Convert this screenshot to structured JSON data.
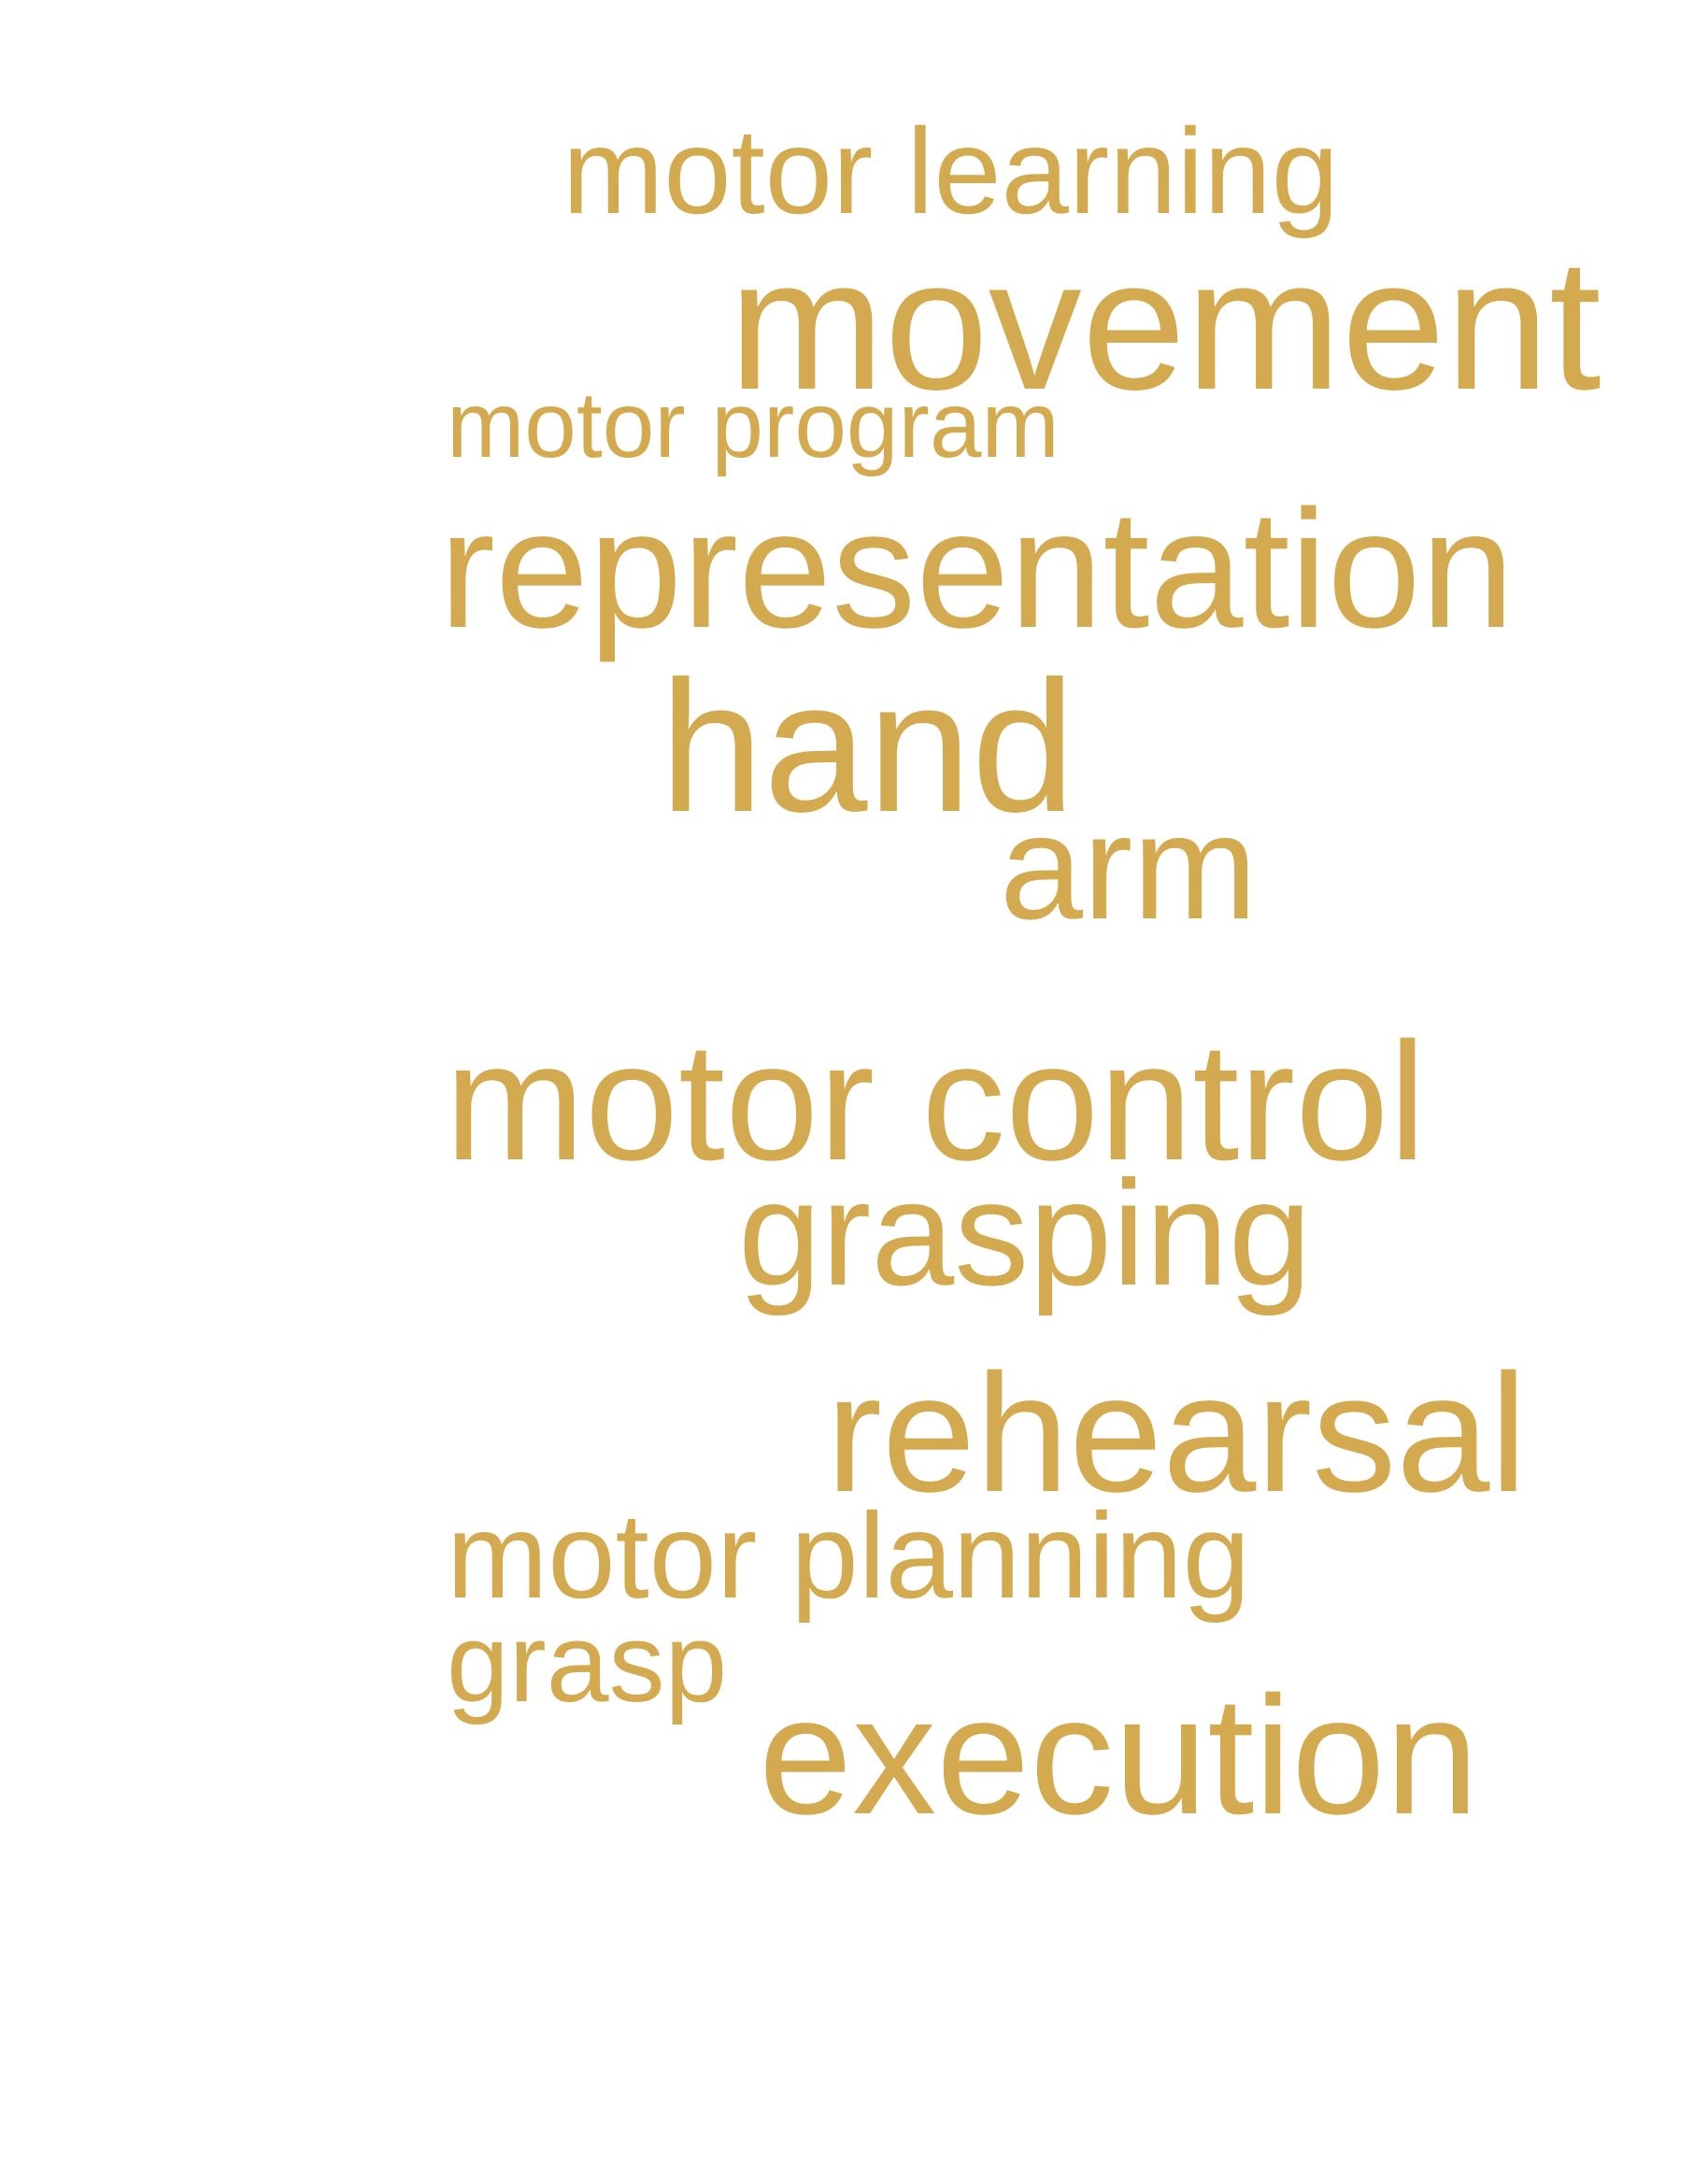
{
  "colors": {
    "background": "#ffffff",
    "word": "#d4aa50"
  },
  "words": [
    "motor learning",
    "movement",
    "motor program",
    "representation",
    "hand",
    "arm",
    "motor control",
    "grasping",
    "rehearsal",
    "motor planning",
    "grasp",
    "execution"
  ]
}
